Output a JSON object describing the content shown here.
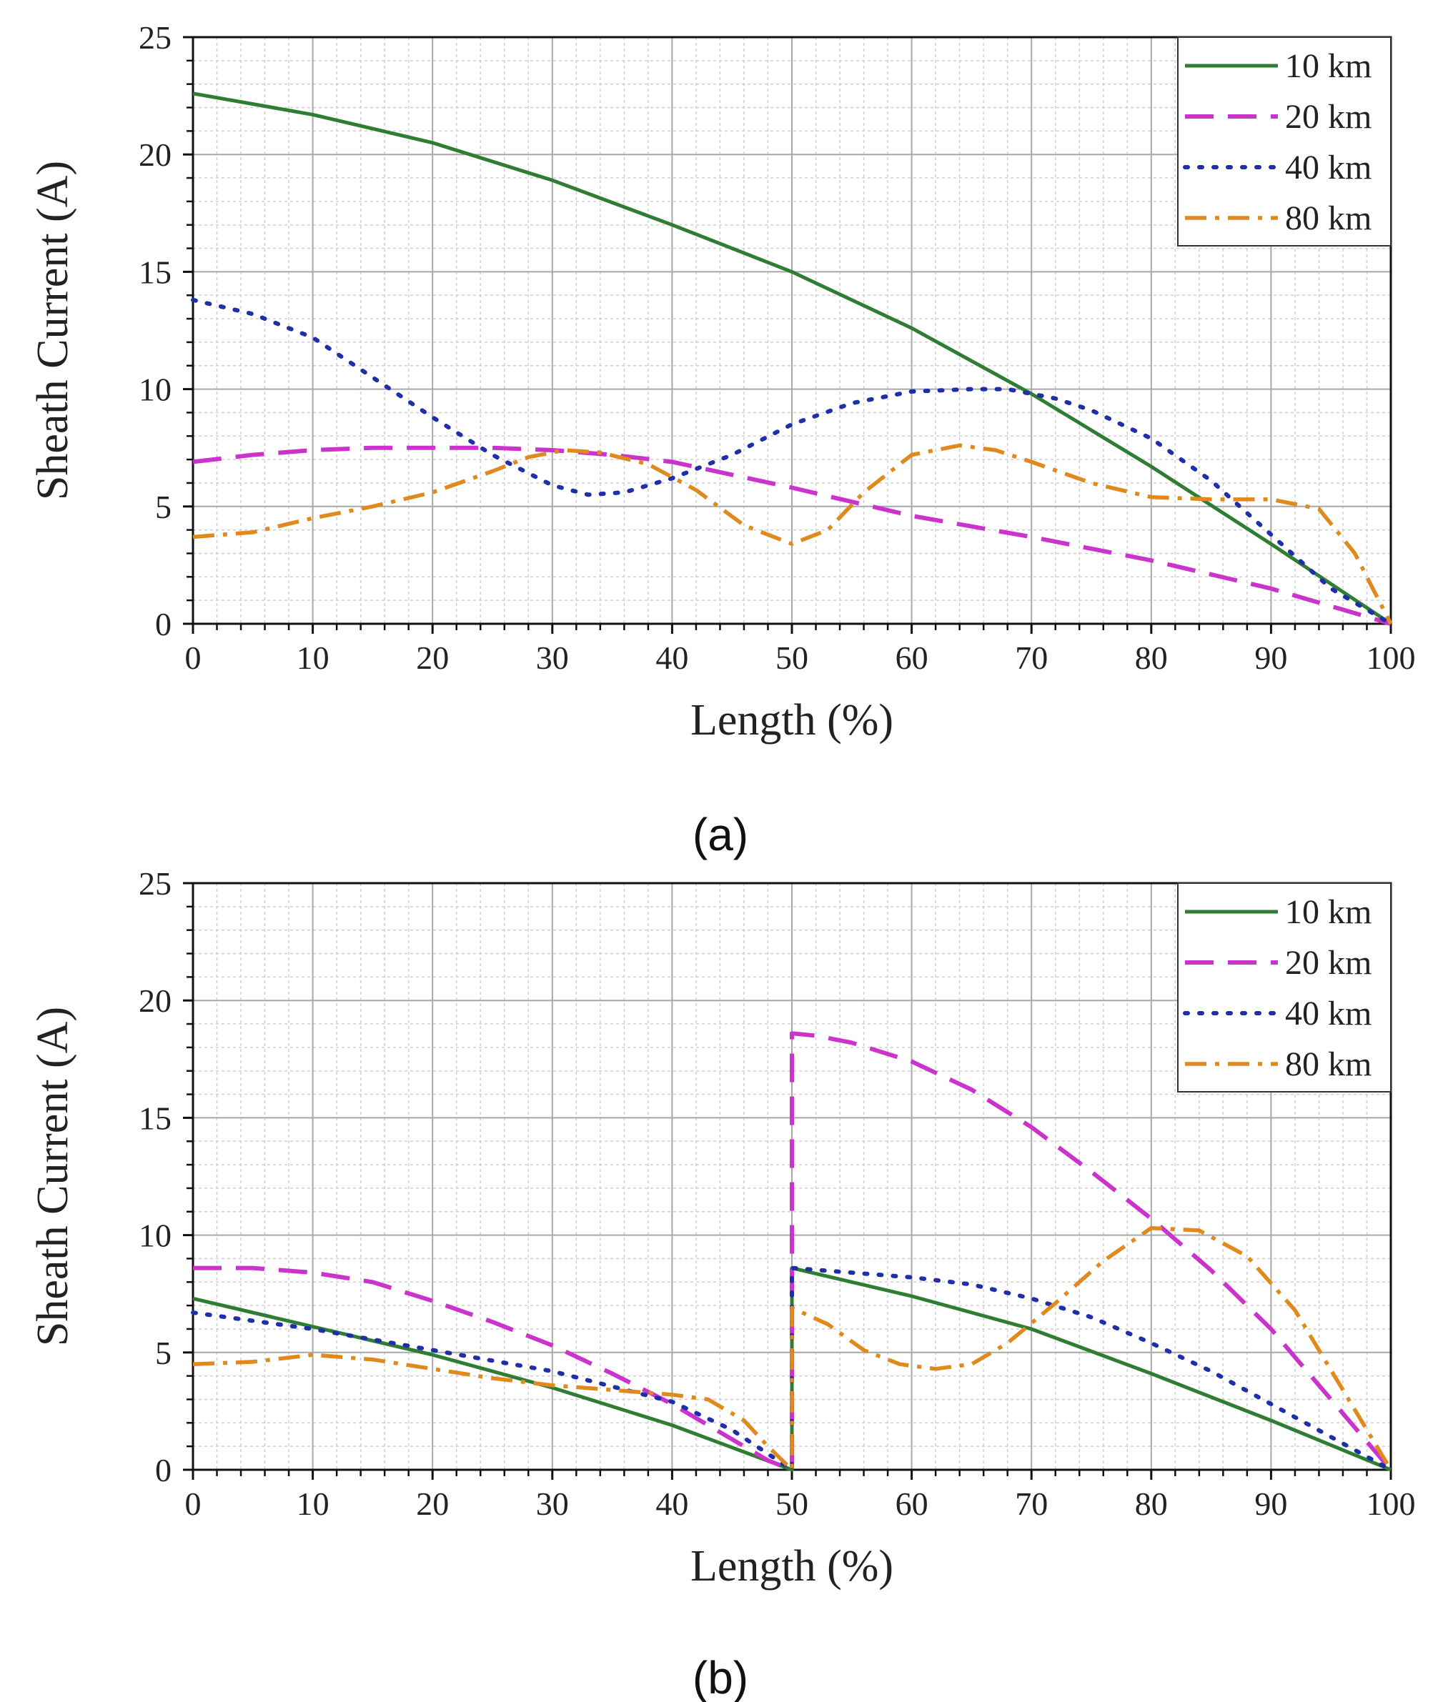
{
  "chart_data": [
    {
      "type": "line",
      "panel_label": "(a)",
      "xlabel": "Length (%)",
      "ylabel": "Sheath Current (A)",
      "xlim": [
        0,
        100
      ],
      "ylim": [
        0,
        25
      ],
      "x_ticks": [
        "0",
        "10",
        "20",
        "30",
        "40",
        "50",
        "60",
        "70",
        "80",
        "90",
        "100"
      ],
      "y_ticks": [
        "0",
        "5",
        "10",
        "15",
        "20",
        "25"
      ],
      "grid": true,
      "legend_position": "top-right",
      "series": [
        {
          "name": "10 km",
          "color": "#2e7d32",
          "style": "solid",
          "x": [
            0,
            10,
            20,
            30,
            40,
            50,
            60,
            70,
            80,
            90,
            100
          ],
          "y": [
            22.6,
            21.7,
            20.5,
            18.9,
            17.0,
            15.0,
            12.6,
            9.8,
            6.7,
            3.4,
            0.0
          ]
        },
        {
          "name": "20 km",
          "color": "#cc33cc",
          "style": "dash",
          "x": [
            0,
            5,
            10,
            15,
            20,
            25,
            30,
            35,
            40,
            50,
            60,
            70,
            80,
            90,
            100
          ],
          "y": [
            6.9,
            7.2,
            7.4,
            7.5,
            7.5,
            7.5,
            7.4,
            7.2,
            6.9,
            5.8,
            4.6,
            3.7,
            2.7,
            1.5,
            0.0
          ]
        },
        {
          "name": "40 km",
          "color": "#1f2fa8",
          "style": "dot",
          "x": [
            0,
            5,
            10,
            15,
            20,
            25,
            30,
            33,
            36,
            40,
            45,
            50,
            55,
            60,
            65,
            68,
            72,
            75,
            80,
            85,
            90,
            95,
            100
          ],
          "y": [
            13.8,
            13.2,
            12.2,
            10.5,
            8.8,
            7.2,
            5.9,
            5.5,
            5.6,
            6.2,
            7.2,
            8.5,
            9.4,
            9.9,
            10.0,
            10.0,
            9.6,
            9.1,
            7.9,
            6.1,
            3.8,
            1.5,
            0.0
          ]
        },
        {
          "name": "80 km",
          "color": "#e08a1e",
          "style": "dashdot",
          "x": [
            0,
            5,
            10,
            15,
            20,
            25,
            28,
            31,
            34,
            38,
            42,
            46,
            50,
            53,
            56,
            60,
            64,
            67,
            70,
            75,
            80,
            85,
            90,
            94,
            97,
            100
          ],
          "y": [
            3.7,
            3.9,
            4.5,
            5.0,
            5.6,
            6.5,
            7.1,
            7.4,
            7.3,
            6.8,
            5.7,
            4.2,
            3.4,
            4.0,
            5.6,
            7.2,
            7.6,
            7.4,
            6.9,
            6.0,
            5.4,
            5.3,
            5.3,
            4.9,
            3.0,
            0.0
          ]
        }
      ]
    },
    {
      "type": "line",
      "panel_label": "(b)",
      "xlabel": "Length (%)",
      "ylabel": "Sheath Current (A)",
      "xlim": [
        0,
        100
      ],
      "ylim": [
        0,
        25
      ],
      "x_ticks": [
        "0",
        "10",
        "20",
        "30",
        "40",
        "50",
        "60",
        "70",
        "80",
        "90",
        "100"
      ],
      "y_ticks": [
        "0",
        "5",
        "10",
        "15",
        "20",
        "25"
      ],
      "grid": true,
      "legend_position": "top-right",
      "series": [
        {
          "name": "10 km",
          "color": "#2e7d32",
          "style": "solid",
          "x": [
            0,
            10,
            20,
            30,
            40,
            50,
            50,
            60,
            70,
            80,
            90,
            100
          ],
          "y": [
            7.3,
            6.1,
            4.9,
            3.5,
            1.9,
            0.0,
            8.6,
            7.4,
            6.0,
            4.1,
            2.1,
            0.0
          ]
        },
        {
          "name": "20 km",
          "color": "#cc33cc",
          "style": "dash",
          "x": [
            0,
            5,
            10,
            15,
            20,
            25,
            30,
            35,
            40,
            45,
            48,
            50,
            50,
            52,
            55,
            60,
            65,
            70,
            75,
            80,
            85,
            90,
            95,
            100
          ],
          "y": [
            8.6,
            8.6,
            8.4,
            8.0,
            7.2,
            6.3,
            5.3,
            4.1,
            2.8,
            1.3,
            0.4,
            0.0,
            18.6,
            18.5,
            18.2,
            17.4,
            16.2,
            14.6,
            12.7,
            10.7,
            8.5,
            6.0,
            3.0,
            0.0
          ]
        },
        {
          "name": "40 km",
          "color": "#1f2fa8",
          "style": "dot",
          "x": [
            0,
            10,
            20,
            30,
            40,
            45,
            50,
            50,
            55,
            60,
            65,
            70,
            75,
            80,
            85,
            90,
            95,
            100
          ],
          "y": [
            6.7,
            6.0,
            5.1,
            4.2,
            2.9,
            1.7,
            0.0,
            8.6,
            8.4,
            8.2,
            7.9,
            7.3,
            6.5,
            5.4,
            4.2,
            2.8,
            1.4,
            0.0
          ]
        },
        {
          "name": "80 km",
          "color": "#e08a1e",
          "style": "dashdot",
          "x": [
            0,
            5,
            10,
            15,
            20,
            25,
            30,
            35,
            40,
            43,
            46,
            48,
            50,
            50,
            53,
            56,
            59,
            62,
            65,
            68,
            72,
            76,
            80,
            84,
            88,
            92,
            96,
            100
          ],
          "y": [
            4.5,
            4.6,
            4.9,
            4.7,
            4.3,
            3.9,
            3.6,
            3.4,
            3.2,
            3.0,
            2.1,
            1.0,
            0.0,
            6.9,
            6.2,
            5.1,
            4.5,
            4.3,
            4.5,
            5.4,
            7.1,
            8.9,
            10.3,
            10.2,
            9.1,
            6.8,
            3.4,
            0.0
          ]
        }
      ]
    }
  ]
}
